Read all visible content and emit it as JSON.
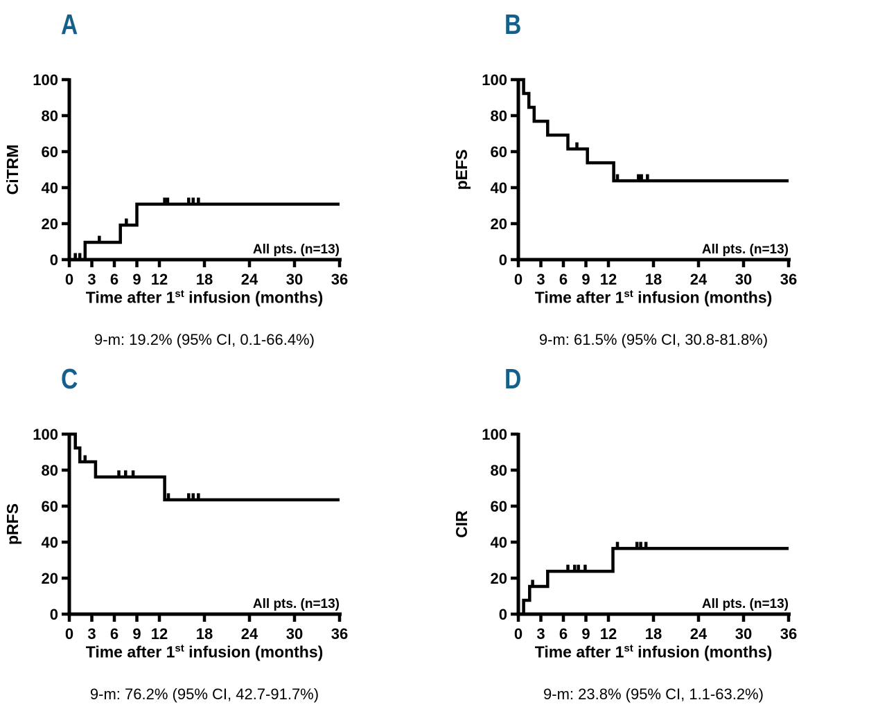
{
  "figure": {
    "annotation": "All pts. (n=13)",
    "x_axis": {
      "label_pre": "Time after 1",
      "label_sup": "st",
      "label_post": " infusion (months)",
      "ticks": [
        0,
        3,
        6,
        9,
        12,
        18,
        24,
        30,
        36
      ],
      "max": 36
    },
    "y_axis": {
      "ticks": [
        0,
        20,
        40,
        60,
        80,
        100
      ],
      "max": 100
    },
    "colors": {
      "panel_label": "#155f8b",
      "curve": "#000000",
      "text": "#000000"
    }
  },
  "chart_data": [
    {
      "panel": "A",
      "type": "line",
      "subtype": "kaplan-meier-step",
      "ylabel": "CiTRM",
      "xlabel": "Time after 1st infusion (months)",
      "xlim": [
        0,
        36
      ],
      "ylim": [
        0,
        100
      ],
      "steps": [
        [
          0,
          0
        ],
        [
          2.1,
          0
        ],
        [
          2.1,
          9.6
        ],
        [
          6.8,
          9.6
        ],
        [
          6.8,
          19.2
        ],
        [
          9.0,
          19.2
        ],
        [
          9.0,
          30.8
        ],
        [
          36,
          30.8
        ]
      ],
      "censor_marks": [
        [
          0.8,
          0
        ],
        [
          1.4,
          0
        ],
        [
          4.0,
          9.6
        ],
        [
          7.6,
          19.2
        ],
        [
          12.7,
          30.8
        ],
        [
          13.1,
          30.8
        ],
        [
          15.9,
          30.8
        ],
        [
          16.5,
          30.8
        ],
        [
          17.2,
          30.8
        ]
      ],
      "annotation": "All pts. (n=13)",
      "caption": "9-m: 19.2% (95% CI, 0.1-66.4%)"
    },
    {
      "panel": "B",
      "type": "line",
      "subtype": "kaplan-meier-step",
      "ylabel": "pEFS",
      "xlabel": "Time after 1st infusion (months)",
      "xlim": [
        0,
        36
      ],
      "ylim": [
        0,
        100
      ],
      "steps": [
        [
          0,
          100
        ],
        [
          0.7,
          100
        ],
        [
          0.7,
          92.3
        ],
        [
          1.4,
          92.3
        ],
        [
          1.4,
          84.6
        ],
        [
          2.1,
          84.6
        ],
        [
          2.1,
          76.9
        ],
        [
          3.9,
          76.9
        ],
        [
          3.9,
          69.2
        ],
        [
          6.6,
          69.2
        ],
        [
          6.6,
          61.5
        ],
        [
          9.2,
          61.5
        ],
        [
          9.2,
          53.8
        ],
        [
          12.7,
          53.8
        ],
        [
          12.7,
          43.8
        ],
        [
          36,
          43.8
        ]
      ],
      "censor_marks": [
        [
          7.8,
          61.5
        ],
        [
          13.2,
          43.8
        ],
        [
          16.0,
          43.8
        ],
        [
          16.4,
          43.8
        ],
        [
          17.2,
          43.8
        ]
      ],
      "annotation": "All pts. (n=13)",
      "caption": "9-m: 61.5% (95% CI, 30.8-81.8%)"
    },
    {
      "panel": "C",
      "type": "line",
      "subtype": "kaplan-meier-step",
      "ylabel": "pRFS",
      "xlabel": "Time after 1st infusion (months)",
      "xlim": [
        0,
        36
      ],
      "ylim": [
        0,
        100
      ],
      "steps": [
        [
          0,
          100
        ],
        [
          0.8,
          100
        ],
        [
          0.8,
          92.3
        ],
        [
          1.4,
          92.3
        ],
        [
          1.4,
          84.6
        ],
        [
          3.5,
          84.6
        ],
        [
          3.5,
          76.2
        ],
        [
          12.7,
          76.2
        ],
        [
          12.7,
          63.5
        ],
        [
          36,
          63.5
        ]
      ],
      "censor_marks": [
        [
          2.1,
          84.6
        ],
        [
          6.6,
          76.2
        ],
        [
          7.5,
          76.2
        ],
        [
          8.5,
          76.2
        ],
        [
          13.2,
          63.5
        ],
        [
          15.9,
          63.5
        ],
        [
          16.5,
          63.5
        ],
        [
          17.2,
          63.5
        ]
      ],
      "annotation": "All pts. (n=13)",
      "caption": "9-m: 76.2% (95% CI, 42.7-91.7%)"
    },
    {
      "panel": "D",
      "type": "line",
      "subtype": "kaplan-meier-step",
      "ylabel": "CIR",
      "xlabel": "Time after 1st infusion (months)",
      "xlim": [
        0,
        36
      ],
      "ylim": [
        0,
        100
      ],
      "steps": [
        [
          0,
          0
        ],
        [
          0.7,
          0
        ],
        [
          0.7,
          7.7
        ],
        [
          1.5,
          7.7
        ],
        [
          1.5,
          15.4
        ],
        [
          3.9,
          15.4
        ],
        [
          3.9,
          23.8
        ],
        [
          12.6,
          23.8
        ],
        [
          12.6,
          36.5
        ],
        [
          36,
          36.5
        ]
      ],
      "censor_marks": [
        [
          1.9,
          15.4
        ],
        [
          6.6,
          23.8
        ],
        [
          7.5,
          23.8
        ],
        [
          8.0,
          23.8
        ],
        [
          8.9,
          23.8
        ],
        [
          13.2,
          36.5
        ],
        [
          15.8,
          36.5
        ],
        [
          16.3,
          36.5
        ],
        [
          17.0,
          36.5
        ]
      ],
      "annotation": "All pts. (n=13)",
      "caption": "9-m: 23.8% (95% CI, 1.1-63.2%)"
    }
  ]
}
